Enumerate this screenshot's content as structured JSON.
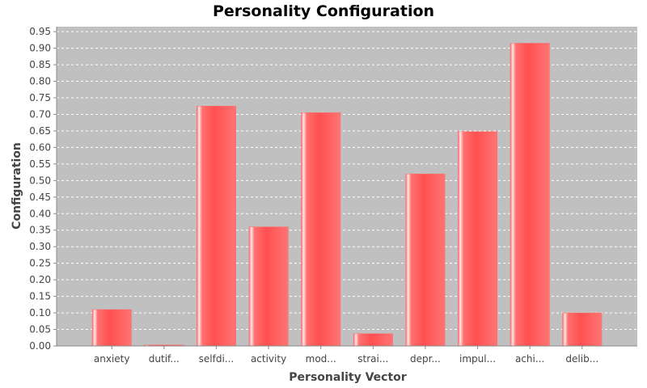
{
  "chart_data": {
    "type": "bar",
    "title": "Personality Configuration",
    "xlabel": "Personality Vector",
    "ylabel": "Configuration",
    "categories": [
      "anxiety",
      "dutif...",
      "selfdi...",
      "activity",
      "mod...",
      "strai...",
      "depr...",
      "impul...",
      "achi...",
      "delib..."
    ],
    "values": [
      0.11,
      0.003,
      0.725,
      0.36,
      0.705,
      0.037,
      0.52,
      0.648,
      0.915,
      0.1
    ],
    "ylim": [
      0,
      0.95
    ],
    "yticks": [
      "0.00",
      "0.05",
      "0.10",
      "0.15",
      "0.20",
      "0.25",
      "0.30",
      "0.35",
      "0.40",
      "0.45",
      "0.50",
      "0.55",
      "0.60",
      "0.65",
      "0.70",
      "0.75",
      "0.80",
      "0.85",
      "0.90",
      "0.95"
    ],
    "grid": true,
    "colors": {
      "bar": "#ff5555",
      "bar_highlight": "#ffe8e8",
      "plot_bg": "#c0c0c0",
      "grid": "#ffffff"
    }
  }
}
